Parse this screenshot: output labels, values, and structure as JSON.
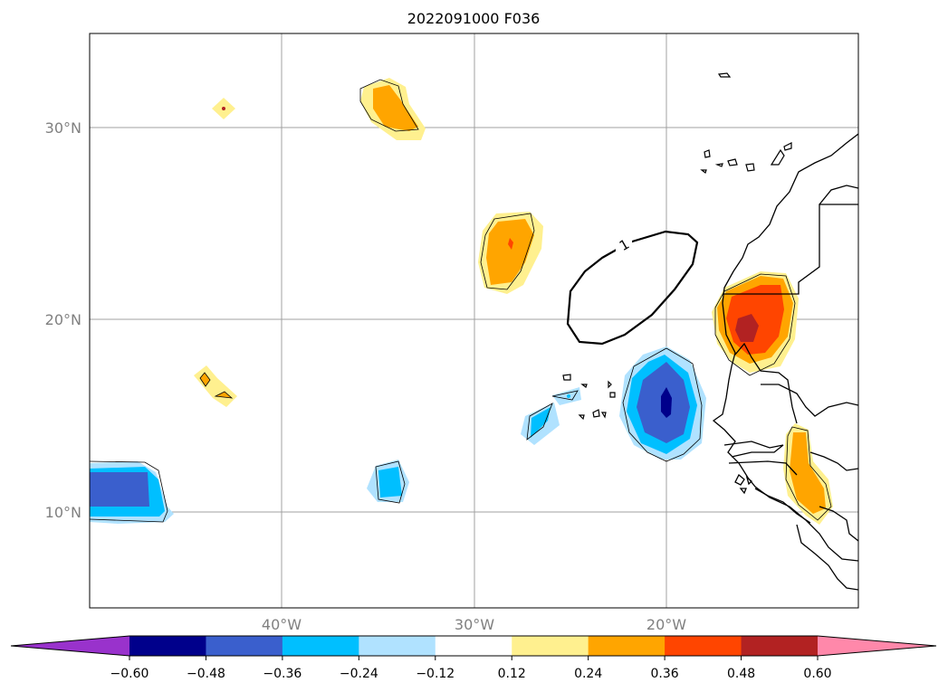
{
  "title": "2022091000 F036",
  "map": {
    "longitude_labels": [
      "40°W",
      "30°W",
      "20°W"
    ],
    "latitude_labels": [
      "30°N",
      "20°N",
      "10°N"
    ],
    "contour_label": "1"
  },
  "colorbar": {
    "tick_labels": [
      "−0.60",
      "−0.48",
      "−0.36",
      "−0.24",
      "−0.12",
      "0.12",
      "0.24",
      "0.36",
      "0.48",
      "0.60"
    ],
    "colors": [
      "#9932cc",
      "#00008b",
      "#3a5fcd",
      "#00bfff",
      "#b0e2ff",
      "#ffffff",
      "#fff08f",
      "#ffa500",
      "#ff4500",
      "#b22222",
      "#ff88aa"
    ]
  },
  "colors": {
    "light_blue": "#b0e2ff",
    "deep_sky_blue": "#00bfff",
    "royal_blue": "#3a5fcd",
    "navy": "#00008b",
    "khaki": "#fff08f",
    "orange": "#ffa500",
    "orange_red": "#ff4500",
    "firebrick": "#b22222"
  }
}
